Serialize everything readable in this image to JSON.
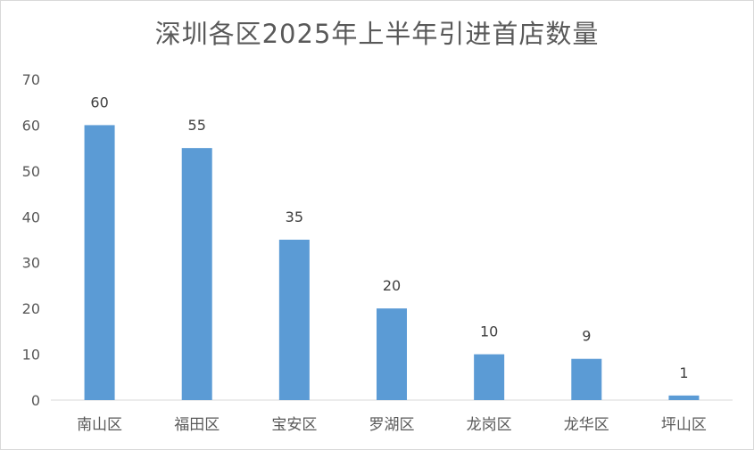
{
  "chart_data": {
    "type": "bar",
    "title": "深圳各区2025年上半年引进首店数量",
    "categories": [
      "南山区",
      "福田区",
      "宝安区",
      "罗湖区",
      "龙岗区",
      "龙华区",
      "坪山区"
    ],
    "values": [
      60,
      55,
      35,
      20,
      10,
      9,
      1
    ],
    "y_ticks": [
      "0",
      "10",
      "20",
      "30",
      "40",
      "50",
      "60",
      "70"
    ],
    "ylim": [
      0,
      70
    ],
    "xlabel": "",
    "ylabel": "",
    "grid": false,
    "legend": "none",
    "data_labels": true,
    "bar_color": "#5b9bd5"
  }
}
